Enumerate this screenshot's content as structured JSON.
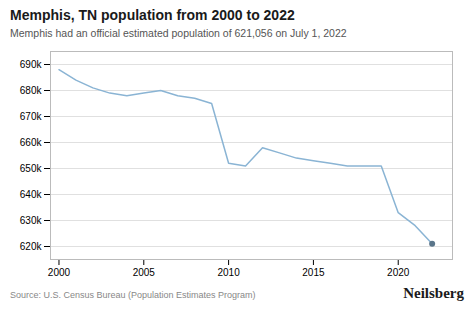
{
  "chart_data": {
    "type": "line",
    "title": "Memphis, TN population from 2000 to 2022",
    "subtitle": "Memphis had an official estimated population of 621,056 on July 1, 2022",
    "annotations": [
      "Source: U.S. Census Bureau (Population Estimates Program)",
      "Neilsberg"
    ],
    "x": [
      2000,
      2001,
      2002,
      2003,
      2004,
      2005,
      2006,
      2007,
      2008,
      2009,
      2010,
      2011,
      2012,
      2013,
      2014,
      2015,
      2016,
      2017,
      2018,
      2019,
      2020,
      2021,
      2022
    ],
    "values": [
      688000,
      684000,
      681000,
      679000,
      678000,
      679000,
      680000,
      678000,
      677000,
      675000,
      652000,
      651000,
      658000,
      656000,
      654000,
      653000,
      652000,
      651000,
      651000,
      651000,
      633000,
      628000,
      621056
    ],
    "color": "#8ab4d4",
    "xlim": [
      1999.5,
      2023.2
    ],
    "xticks": [
      2000,
      2005,
      2010,
      2015,
      2020
    ],
    "ylim": [
      615000,
      695000
    ],
    "yticks": [
      {
        "value": 620000,
        "label": "620k"
      },
      {
        "value": 630000,
        "label": "630k"
      },
      {
        "value": 640000,
        "label": "640k"
      },
      {
        "value": 650000,
        "label": "650k"
      },
      {
        "value": 660000,
        "label": "660k"
      },
      {
        "value": 670000,
        "label": "670k"
      },
      {
        "value": 680000,
        "label": "680k"
      },
      {
        "value": 690000,
        "label": "690k"
      }
    ],
    "grid": true
  }
}
